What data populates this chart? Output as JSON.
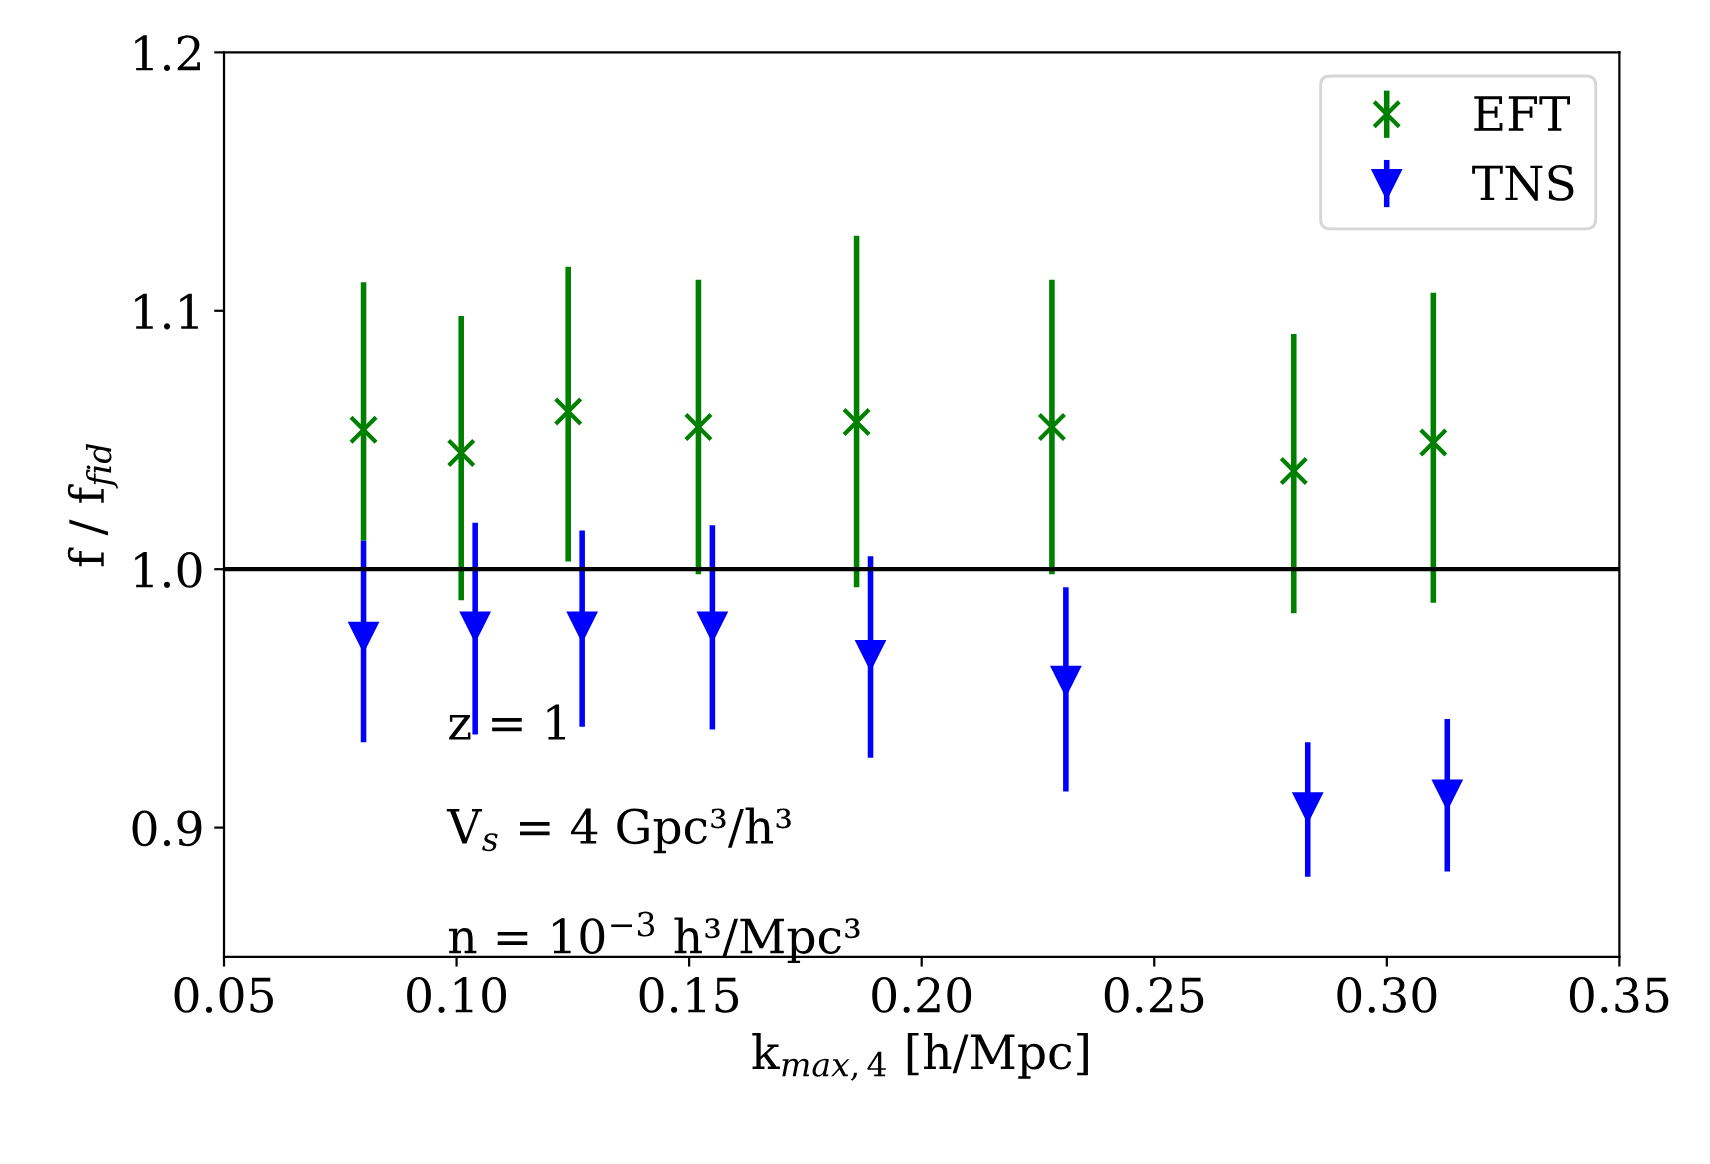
{
  "chart_data": {
    "type": "scatter",
    "xlabel": "k$_{max,4}$ [h/Mpc]",
    "ylabel": "f / f$_{fid}$",
    "xlim": [
      0.05,
      0.35
    ],
    "xticks": [
      0.05,
      {
        "value": 0.1,
        "label": "0.10"
      },
      0.15,
      {
        "value": 0.2,
        "label": "0.20"
      },
      0.25,
      {
        "value": 0.3,
        "label": "0.30"
      },
      0.35
    ],
    "ylim": [
      0.85,
      1.2
    ],
    "yticks": [
      0.9,
      {
        "value": 1.0,
        "label": "1.0"
      },
      1.1,
      1.2
    ],
    "series": [
      {
        "name": "EFT",
        "color": "#008000",
        "marker": "cross",
        "x": [
          0.08,
          0.101,
          0.124,
          0.152,
          0.186,
          0.228,
          0.28,
          0.31
        ],
        "values": [
          1.054,
          1.045,
          1.061,
          1.055,
          1.057,
          1.055,
          1.038,
          1.049
        ],
        "errors": [
          [
            1.011,
            1.111
          ],
          [
            0.988,
            1.098
          ],
          [
            1.003,
            1.117
          ],
          [
            0.998,
            1.112
          ],
          [
            0.993,
            1.129
          ],
          [
            0.998,
            1.112
          ],
          [
            0.983,
            1.091
          ],
          [
            0.987,
            1.107
          ]
        ]
      },
      {
        "name": "TNS",
        "color": "#0000ff",
        "marker": "triangle",
        "x": [
          0.08,
          0.104,
          0.127,
          0.155,
          0.189,
          0.231,
          0.283,
          0.313
        ],
        "values": [
          0.974,
          0.978,
          0.978,
          0.978,
          0.967,
          0.957,
          0.908,
          0.913
        ],
        "errors": [
          [
            0.933,
            1.011
          ],
          [
            0.936,
            1.018
          ],
          [
            0.939,
            1.015
          ],
          [
            0.938,
            1.017
          ],
          [
            0.927,
            1.005
          ],
          [
            0.914,
            0.993
          ],
          [
            0.881,
            0.933
          ],
          [
            0.883,
            0.942
          ]
        ]
      }
    ],
    "ref_lines": [
      {
        "axis": "y",
        "value": 1.0,
        "color": "#000000"
      }
    ],
    "annotations": [
      "z = 1",
      "V$_{s}$ = 4 Gpc³/h³",
      "n = 10$^{−3}$ h³/Mpc³"
    ],
    "legend": "top right",
    "grid": false
  }
}
